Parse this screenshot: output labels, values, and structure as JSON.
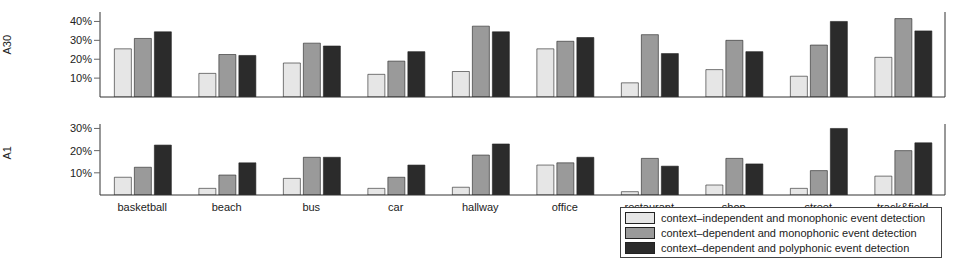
{
  "chart_data": [
    {
      "type": "bar",
      "ylabel": "A30",
      "categories": [
        "basketball",
        "beach",
        "bus",
        "car",
        "hallway",
        "office",
        "restaurant",
        "shop",
        "street",
        "track&field"
      ],
      "series": [
        {
          "name": "context–independent and monophonic event detection",
          "color": "#e6e6e6",
          "values": [
            25.5,
            12.5,
            18,
            12,
            13.5,
            25.5,
            7.5,
            14.5,
            11,
            21
          ]
        },
        {
          "name": "context–dependent and monophonic event detection",
          "color": "#9a9a9a",
          "values": [
            31,
            22.5,
            28.5,
            19,
            37.5,
            29.5,
            33,
            30,
            27.5,
            41.5
          ]
        },
        {
          "name": "context–dependent and polyphonic event detection",
          "color": "#2b2b2b",
          "values": [
            34.5,
            22,
            27,
            24,
            34.5,
            31.5,
            23,
            24,
            40,
            35
          ]
        }
      ],
      "ylim": [
        0,
        45
      ],
      "yticks": [
        {
          "value": 10,
          "label": "10%"
        },
        {
          "value": 20,
          "label": "20%"
        },
        {
          "value": 30,
          "label": "30%"
        },
        {
          "value": 40,
          "label": "40%"
        }
      ],
      "tick_labels": "y"
    },
    {
      "type": "bar",
      "ylabel": "A1",
      "categories": [
        "basketball",
        "beach",
        "bus",
        "car",
        "hallway",
        "office",
        "restaurant",
        "shop",
        "street",
        "track&field"
      ],
      "series": [
        {
          "name": "context–independent and monophonic event detection",
          "color": "#e6e6e6",
          "values": [
            8,
            3,
            7.5,
            3,
            3.5,
            13.5,
            1.5,
            4.5,
            3,
            8.5
          ]
        },
        {
          "name": "context–dependent and monophonic event detection",
          "color": "#9a9a9a",
          "values": [
            12.5,
            9,
            17,
            8,
            18,
            14.5,
            16.5,
            16.5,
            11,
            20
          ]
        },
        {
          "name": "context–dependent and polyphonic event detection",
          "color": "#2b2b2b",
          "values": [
            22.5,
            14.5,
            17,
            13.5,
            23,
            17,
            13,
            14,
            30,
            23.5
          ]
        }
      ],
      "ylim": [
        0,
        32
      ],
      "yticks": [
        {
          "value": 10,
          "label": "10%"
        },
        {
          "value": 20,
          "label": "20%"
        },
        {
          "value": 30,
          "label": "30%"
        }
      ],
      "legend": "lower right"
    }
  ]
}
